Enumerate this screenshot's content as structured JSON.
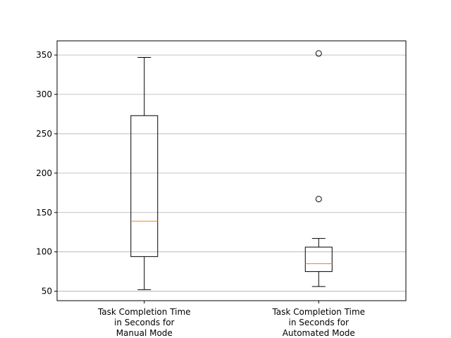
{
  "chart_data": {
    "type": "box",
    "title": "",
    "xlabel": "",
    "ylabel": "",
    "ylim": [
      38,
      368
    ],
    "yticks": [
      50,
      100,
      150,
      200,
      250,
      300,
      350
    ],
    "grid": "horizontal",
    "colors": {
      "box": "#000000",
      "median": "#ff7f0e",
      "grid": "#b0b0b0"
    },
    "categories": [
      {
        "label_lines": [
          "Task Completion Time",
          "in Seconds for",
          "Manual Mode"
        ],
        "whisker_low": 52,
        "q1": 94,
        "median": 139,
        "q3": 273,
        "whisker_high": 347,
        "outliers": []
      },
      {
        "label_lines": [
          "Task Completion Time",
          "in Seconds for",
          "Automated Mode"
        ],
        "whisker_low": 56,
        "q1": 75,
        "median": 85,
        "q3": 106,
        "whisker_high": 117,
        "outliers": [
          167,
          352
        ]
      }
    ]
  }
}
